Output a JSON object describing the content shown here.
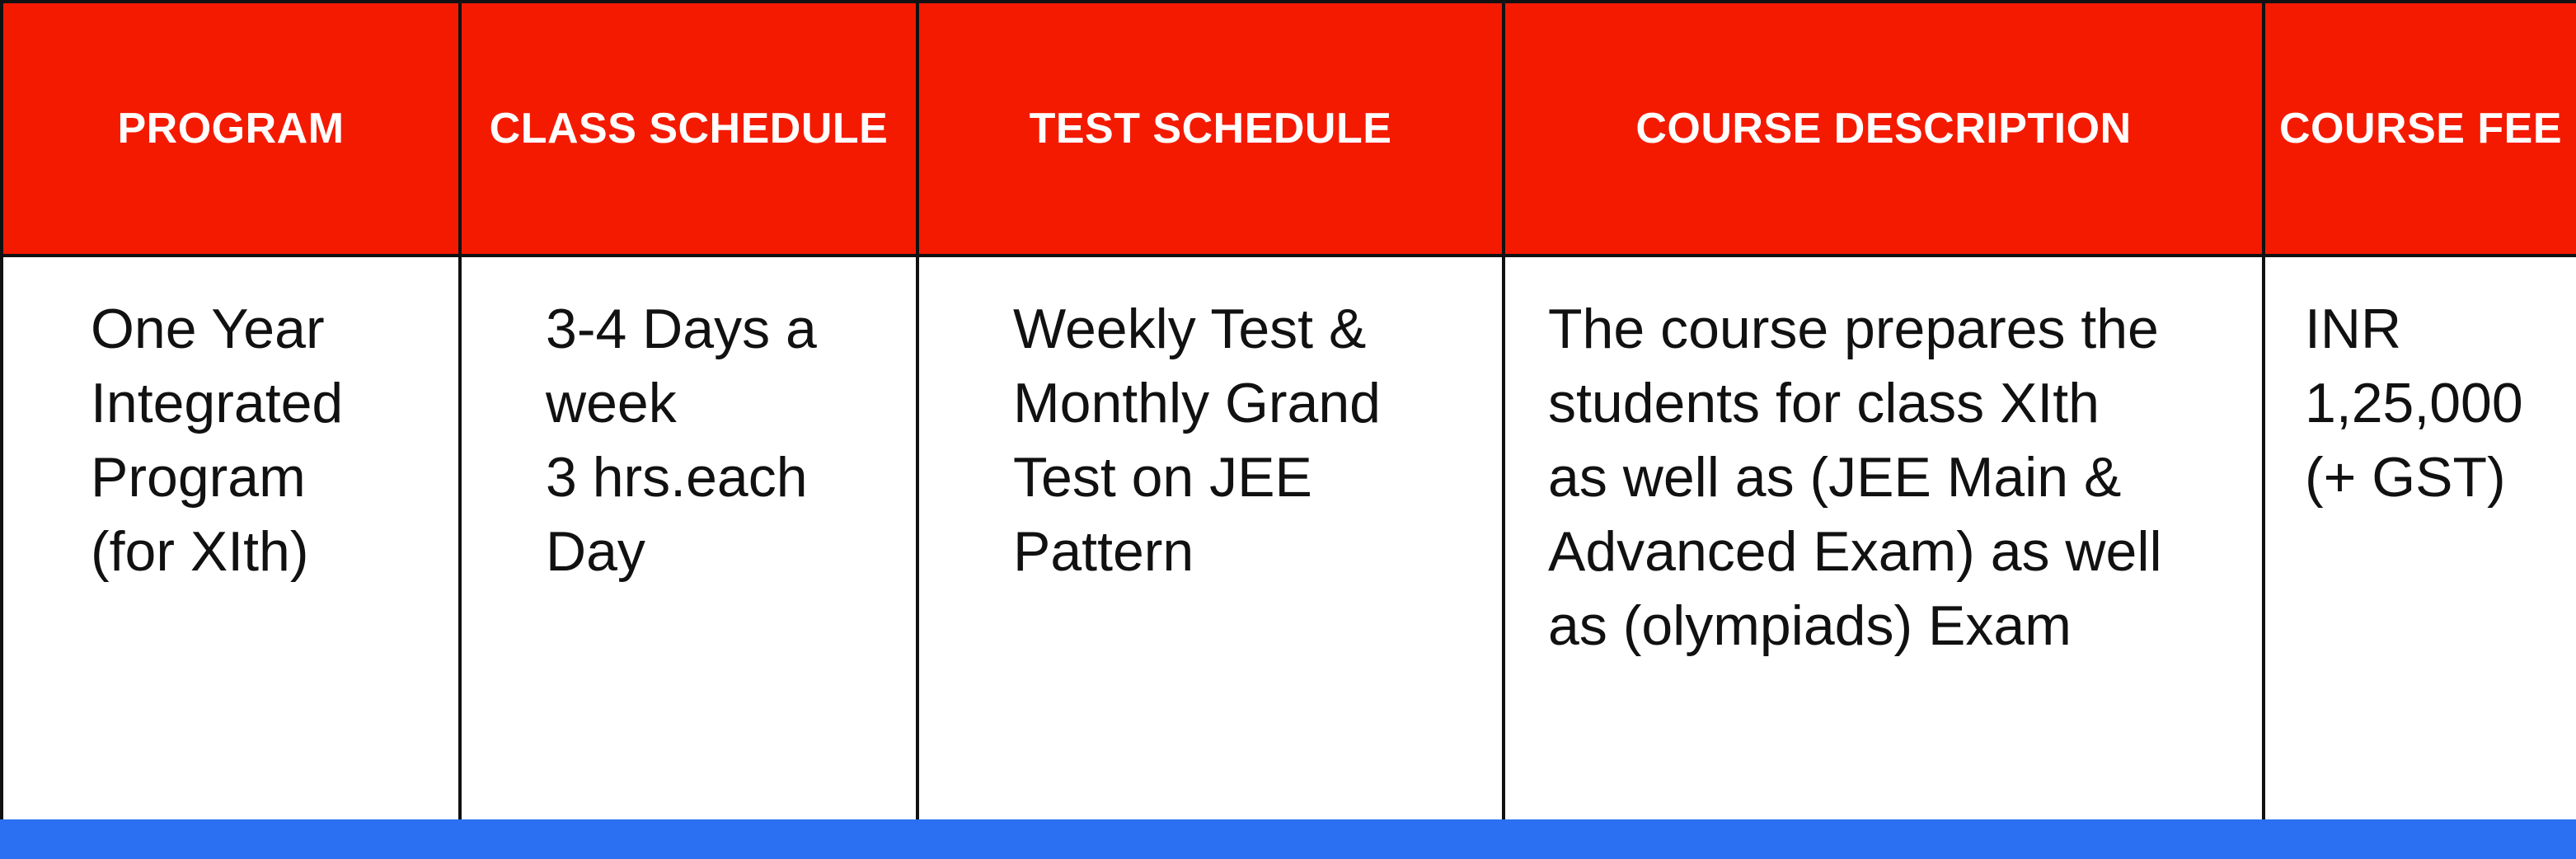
{
  "table": {
    "headers": {
      "program": "PROGRAM",
      "class_schedule": "CLASS SCHEDULE",
      "test_schedule": "TEST SCHEDULE",
      "course_description": "COURSE DESCRIPTION",
      "course_fee": "COURSE FEE"
    },
    "row": {
      "program": "One Year\nIntegrated\nProgram\n(for XIth)",
      "class_schedule": "3-4 Days a\nweek\n3 hrs.each\nDay",
      "test_schedule": "Weekly Test &\nMonthly Grand\nTest on JEE\nPattern",
      "course_description": "The course prepares the\nstudents for class XIth\nas well as (JEE Main &\nAdvanced Exam) as well\nas (olympiads) Exam",
      "course_fee": "INR\n1,25,000\n(+ GST)"
    }
  },
  "colors": {
    "header_background": "#f41a00",
    "header_text": "#ffffff",
    "border": "#111111",
    "bottom_bar": "#2b6ff2"
  }
}
